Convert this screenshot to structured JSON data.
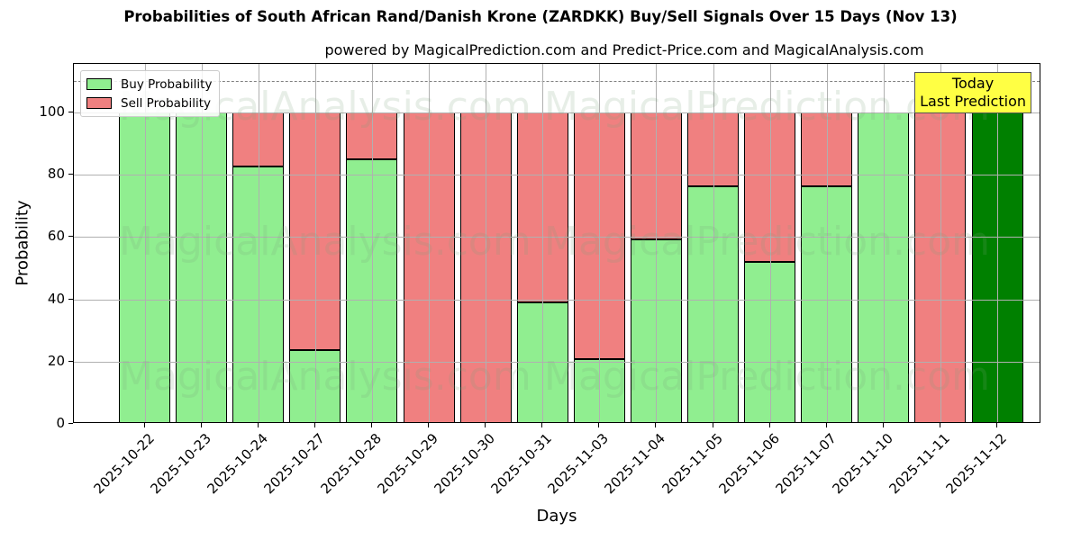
{
  "title": "Probabilities of South African Rand/Danish Krone (ZARDKK) Buy/Sell Signals Over 15 Days (Nov 13)",
  "subtitle": "powered by MagicalPrediction.com and Predict-Price.com and MagicalAnalysis.com",
  "legend": {
    "buy": "Buy Probability",
    "sell": "Sell Probability"
  },
  "annotation": {
    "line1": "Today",
    "line2": "Last Prediction"
  },
  "watermarks": [
    "MagicalAnalysis.com",
    "MagicalPrediction.com"
  ],
  "colors": {
    "buy": "#90ee90",
    "sell": "#f08080",
    "today": "#008000",
    "annotation_bg": "#ffff44"
  },
  "yticks": [
    "0",
    "20",
    "40",
    "60",
    "80",
    "100"
  ],
  "chart_data": {
    "type": "bar",
    "stacked": true,
    "title": "Probabilities of South African Rand/Danish Krone (ZARDKK) Buy/Sell Signals Over 15 Days (Nov 13)",
    "subtitle": "powered by MagicalPrediction.com and Predict-Price.com and MagicalAnalysis.com",
    "xlabel": "Days",
    "ylabel": "Probability",
    "ylim": [
      0,
      115
    ],
    "grid": true,
    "legend_position": "upper left",
    "reference_line": {
      "y": 110,
      "style": "dashed",
      "color": "#808080"
    },
    "categories": [
      "2025-10-22",
      "2025-10-23",
      "2025-10-24",
      "2025-10-27",
      "2025-10-28",
      "2025-10-29",
      "2025-10-30",
      "2025-10-31",
      "2025-11-03",
      "2025-11-04",
      "2025-11-05",
      "2025-11-06",
      "2025-11-07",
      "2025-11-10",
      "2025-11-11",
      "2025-11-12"
    ],
    "series": [
      {
        "name": "Buy Probability",
        "color": "#90ee90",
        "values": [
          100,
          100,
          82.8,
          23.7,
          85.0,
          0,
          0,
          39.0,
          20.8,
          59.2,
          76.3,
          52.0,
          76.3,
          100,
          0,
          100
        ]
      },
      {
        "name": "Sell Probability",
        "color": "#f08080",
        "values": [
          0,
          0,
          17.2,
          76.3,
          15.0,
          100,
          100,
          61.0,
          79.2,
          40.8,
          23.7,
          48.0,
          23.7,
          0,
          100,
          0
        ]
      }
    ],
    "highlight": {
      "category": "2025-11-12",
      "color": "#008000",
      "label": "Today\nLast Prediction"
    }
  }
}
